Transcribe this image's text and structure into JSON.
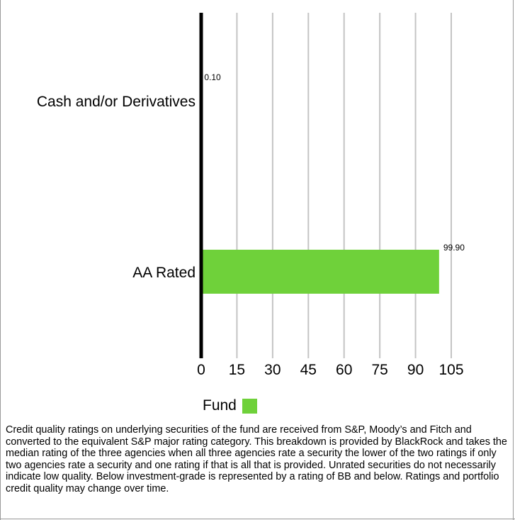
{
  "chart_data": {
    "type": "bar",
    "orientation": "horizontal",
    "categories": [
      "Cash and/or Derivatives",
      "AA Rated"
    ],
    "series": [
      {
        "name": "Fund",
        "values": [
          0.1,
          99.9
        ],
        "value_labels": [
          "0.10",
          "99.90"
        ]
      }
    ],
    "xlim": [
      0,
      105
    ],
    "x_ticks": [
      0,
      15,
      30,
      45,
      60,
      75,
      90,
      105
    ],
    "grid": true,
    "legend_position": "bottom-center",
    "bar_color": "#6fd13a",
    "title": "",
    "xlabel": "",
    "ylabel": ""
  },
  "legend": {
    "label": "Fund",
    "color": "#6fd13a"
  },
  "footnote": "Credit quality ratings on underlying securities of the fund are received from S&P, Moody’s and Fitch and converted to the equivalent S&P major rating category. This breakdown is provided by BlackRock and takes the median rating of the three agencies when all three agencies rate a security the lower of the two ratings if only two agencies rate a security and one rating if that is all that is provided. Unrated securities do not necessarily indicate low quality. Below investment-grade is represented by a rating of BB and below. Ratings and portfolio credit quality may change over time."
}
